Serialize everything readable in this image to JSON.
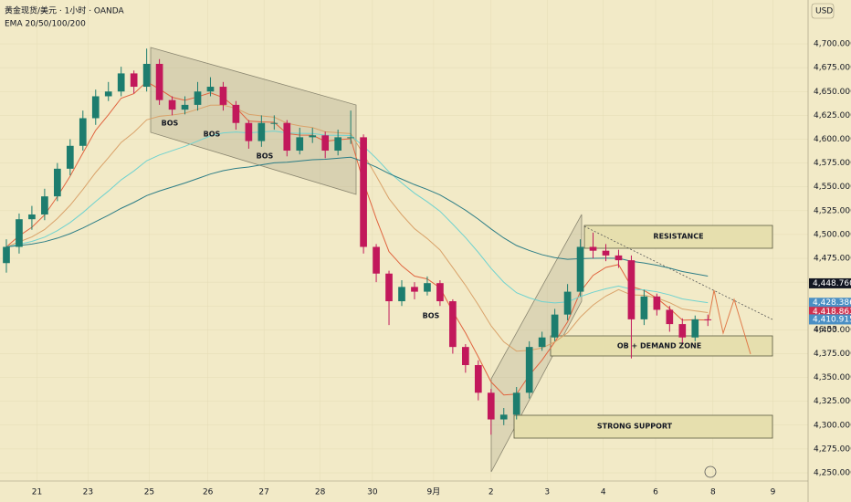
{
  "chart_data": {
    "type": "candlestick",
    "header": "黄金现货/美元 · 1小时 · OANDA",
    "indicator": "EMA 20/50/100/200",
    "currency": "USD",
    "up_color": "#1d7d6e",
    "down_color": "#c2185b",
    "open": [
      4470,
      4487,
      4516,
      4521,
      4540,
      4569,
      4593,
      4622,
      4645,
      4650,
      4669,
      4655,
      4679,
      4641,
      4631,
      4636,
      4650,
      4655,
      4636,
      4617,
      4598,
      4617,
      4617,
      4588,
      4602,
      4604,
      4588,
      4602,
      4602,
      4487,
      4459,
      4430,
      4445,
      4440,
      4449,
      4430,
      4382,
      4363,
      4334,
      4306,
      4311,
      4334,
      4382,
      4392,
      4416,
      4440,
      4487,
      4483,
      4478,
      4473,
      4411,
      4435,
      4421,
      4406,
      4392,
      4411
    ],
    "high": [
      4495,
      4522,
      4530,
      4548,
      4575,
      4600,
      4630,
      4652,
      4660,
      4676,
      4672,
      4695,
      4684,
      4645,
      4645,
      4660,
      4665,
      4660,
      4640,
      4620,
      4625,
      4625,
      4620,
      4612,
      4612,
      4608,
      4610,
      4630,
      4605,
      4490,
      4462,
      4452,
      4450,
      4456,
      4452,
      4432,
      4385,
      4368,
      4338,
      4318,
      4340,
      4388,
      4398,
      4422,
      4448,
      4495,
      4502,
      4490,
      4484,
      4478,
      4442,
      4438,
      4425,
      4412,
      4415,
      4416
    ],
    "low": [
      4460,
      4480,
      4505,
      4515,
      4535,
      4562,
      4588,
      4615,
      4640,
      4645,
      4648,
      4650,
      4636,
      4625,
      4626,
      4630,
      4645,
      4630,
      4610,
      4590,
      4592,
      4610,
      4582,
      4584,
      4596,
      4580,
      4583,
      4595,
      4480,
      4450,
      4405,
      4425,
      4432,
      4436,
      4425,
      4375,
      4355,
      4326,
      4290,
      4300,
      4306,
      4328,
      4378,
      4388,
      4410,
      4435,
      4475,
      4472,
      4465,
      4370,
      4405,
      4415,
      4398,
      4385,
      4388,
      4404
    ],
    "close": [
      4487,
      4516,
      4521,
      4540,
      4569,
      4593,
      4622,
      4645,
      4650,
      4669,
      4655,
      4679,
      4641,
      4631,
      4636,
      4650,
      4655,
      4636,
      4617,
      4598,
      4617,
      4617,
      4588,
      4602,
      4604,
      4588,
      4602,
      4602,
      4487,
      4459,
      4430,
      4445,
      4440,
      4449,
      4430,
      4382,
      4363,
      4334,
      4306,
      4311,
      4334,
      4382,
      4392,
      4416,
      4440,
      4487,
      4483,
      4478,
      4473,
      4411,
      4435,
      4421,
      4406,
      4392,
      4411,
      4410
    ],
    "xlim": [
      -0.5,
      62.5
    ],
    "xticks": [
      {
        "value": 2.4,
        "label": "21"
      },
      {
        "value": 6.4,
        "label": "23"
      },
      {
        "value": 11.2,
        "label": "25"
      },
      {
        "value": 15.8,
        "label": "26"
      },
      {
        "value": 20.2,
        "label": "27"
      },
      {
        "value": 24.6,
        "label": "28"
      },
      {
        "value": 28.7,
        "label": "30"
      },
      {
        "value": 33.5,
        "label": "9月"
      },
      {
        "value": 38.0,
        "label": "2"
      },
      {
        "value": 42.4,
        "label": "3"
      },
      {
        "value": 46.8,
        "label": "4"
      },
      {
        "value": 50.9,
        "label": "6"
      },
      {
        "value": 55.4,
        "label": "8"
      },
      {
        "value": 60.1,
        "label": "9"
      }
    ],
    "ylim": [
      4241.4,
      4746
    ],
    "yticks": [
      {
        "value": 4250,
        "label": "4,250.000"
      },
      {
        "value": 4275,
        "label": "4,275.000"
      },
      {
        "value": 4300,
        "label": "4,300.000"
      },
      {
        "value": 4325,
        "label": "4,325.000"
      },
      {
        "value": 4350,
        "label": "4,350.000"
      },
      {
        "value": 4375,
        "label": "4,375.000"
      },
      {
        "value": 4400,
        "label": "4,400.000"
      },
      {
        "value": 4425,
        "label": "4,425.000"
      },
      {
        "value": 4450,
        "label": "4,450.000"
      },
      {
        "value": 4475,
        "label": "4,475.000"
      },
      {
        "value": 4500,
        "label": "4,500.000"
      },
      {
        "value": 4525,
        "label": "4,525.000"
      },
      {
        "value": 4550,
        "label": "4,550.000"
      },
      {
        "value": 4575,
        "label": "4,575.000"
      },
      {
        "value": 4600,
        "label": "4,600.000"
      },
      {
        "value": 4625,
        "label": "4,625.000"
      },
      {
        "value": 4650,
        "label": "4,650.000"
      },
      {
        "value": 4675,
        "label": "4,675.000"
      },
      {
        "value": 4700,
        "label": "4,700.000"
      }
    ],
    "price_labels": [
      {
        "value": 4448.76,
        "label": "4,448.760",
        "color": "#131722"
      },
      {
        "value": 4428.386,
        "label": "4,428.386",
        "color": "#4a8fc4"
      },
      {
        "value": 4418.863,
        "label": "4,418.863",
        "color": "#d0314f"
      },
      {
        "value": 4410.915,
        "label": "4,410.915",
        "color": "#4a8fc4"
      }
    ],
    "countdown": "46:53",
    "annotations": {
      "resistance": "RESISTANCE",
      "demand": "OB + DEMAND ZONE",
      "support": "STRONG SUPPORT",
      "bos": [
        "BOS",
        "BOS",
        "BOS",
        "BOS"
      ]
    }
  }
}
